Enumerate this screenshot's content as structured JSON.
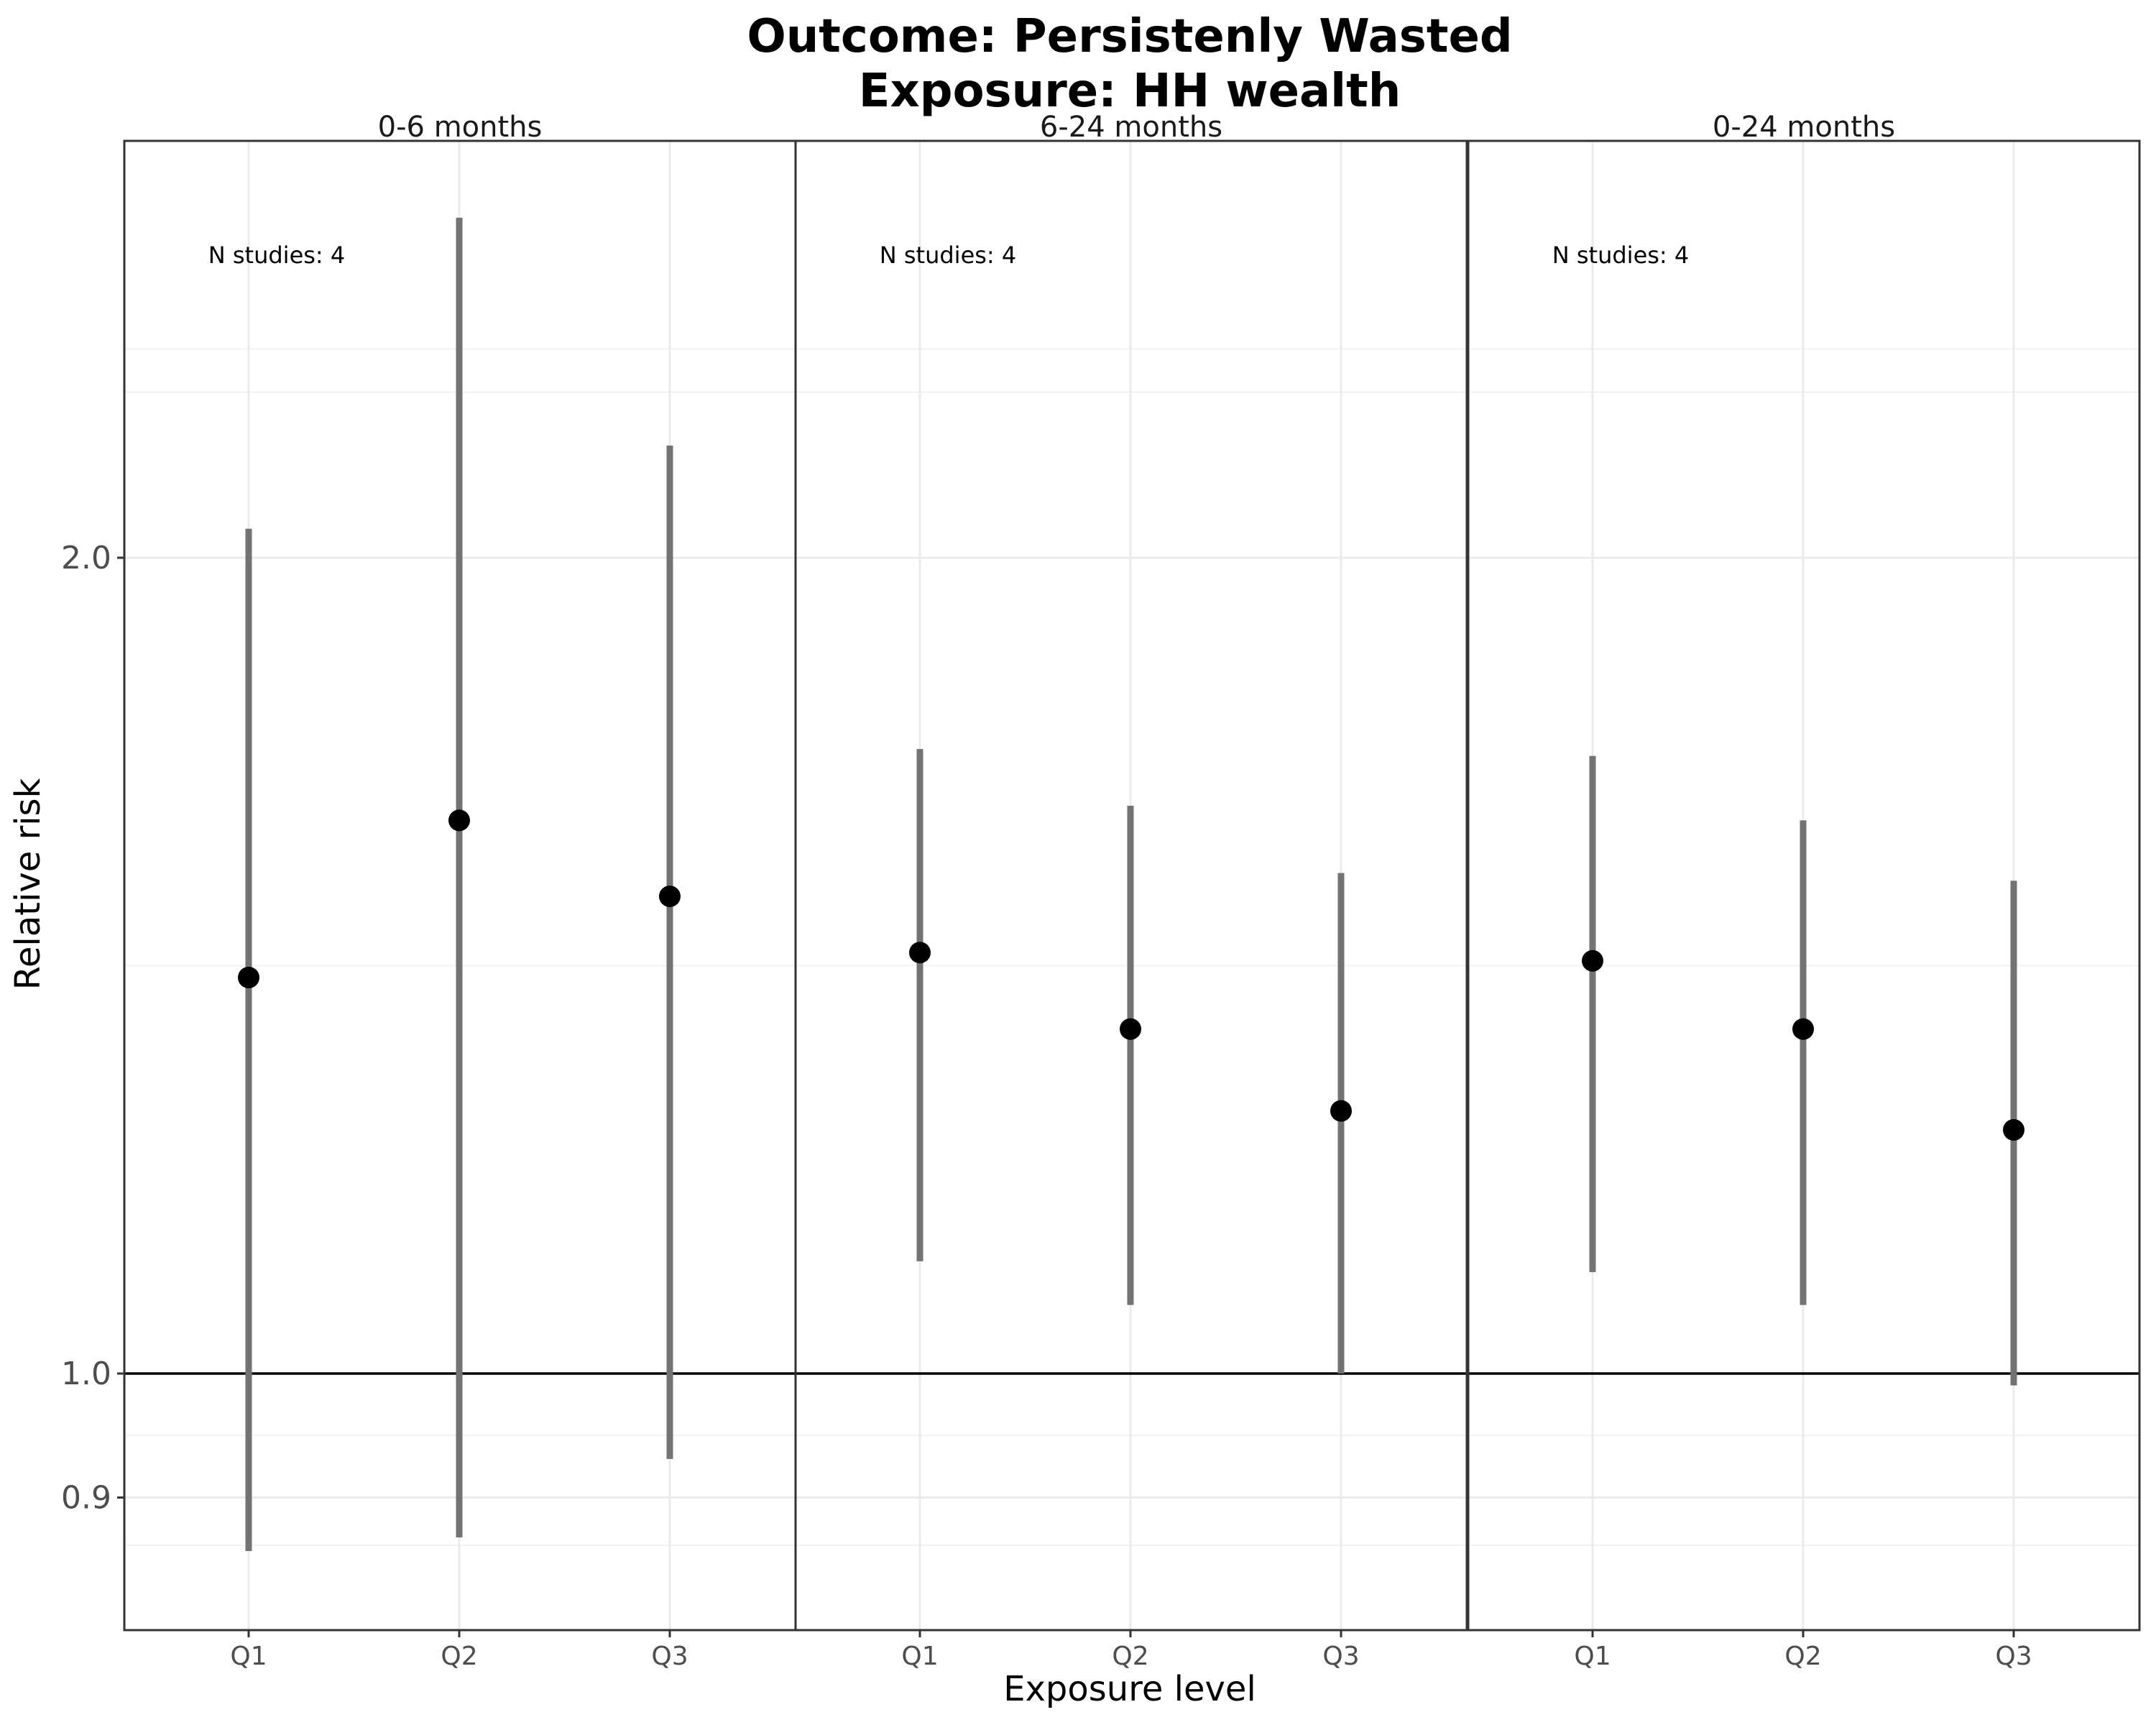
{
  "chart_data": {
    "type": "errorbar",
    "title": "Outcome: Persistenly Wasted",
    "subtitle": "Exposure: HH wealth",
    "xlabel": "Exposure level",
    "ylabel": "Relative risk",
    "y_scale": "log",
    "yticks": [
      0.9,
      1.0,
      2.0
    ],
    "ytick_labels": [
      "0.9",
      "1.0",
      "2.0"
    ],
    "ylim": [
      0.83,
      2.65
    ],
    "reference_line": 1.0,
    "grid": true,
    "categories": [
      "Q1",
      "Q2",
      "Q3"
    ],
    "panels": [
      {
        "label": "0-6 months",
        "annotation": "N studies: 4",
        "points": [
          {
            "category": "Q1",
            "estimate": 1.4,
            "lower": 0.86,
            "upper": 2.05
          },
          {
            "category": "Q2",
            "estimate": 1.6,
            "lower": 0.87,
            "upper": 2.67
          },
          {
            "category": "Q3",
            "estimate": 1.5,
            "lower": 0.93,
            "upper": 2.2
          }
        ]
      },
      {
        "label": "6-24 months",
        "annotation": "N studies: 4",
        "points": [
          {
            "category": "Q1",
            "estimate": 1.43,
            "lower": 1.1,
            "upper": 1.7
          },
          {
            "category": "Q2",
            "estimate": 1.34,
            "lower": 1.06,
            "upper": 1.62
          },
          {
            "category": "Q3",
            "estimate": 1.25,
            "lower": 1.0,
            "upper": 1.53
          }
        ]
      },
      {
        "label": "0-24 months",
        "annotation": "N studies: 4",
        "points": [
          {
            "category": "Q1",
            "estimate": 1.42,
            "lower": 1.09,
            "upper": 1.69
          },
          {
            "category": "Q2",
            "estimate": 1.34,
            "lower": 1.06,
            "upper": 1.6
          },
          {
            "category": "Q3",
            "estimate": 1.23,
            "lower": 0.99,
            "upper": 1.52
          }
        ]
      }
    ]
  }
}
